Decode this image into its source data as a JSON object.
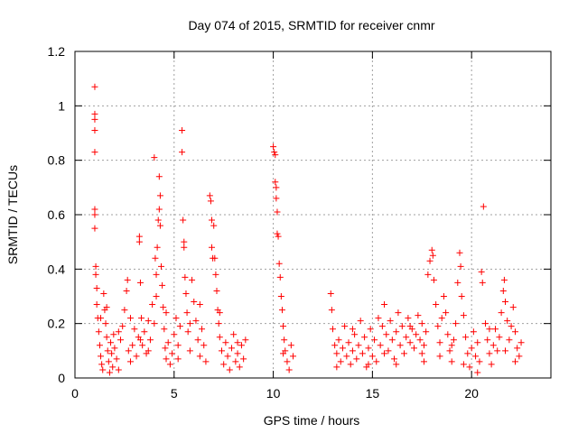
{
  "chart_data": {
    "type": "scatter",
    "title": "Day 074 of 2015, SRMTID for receiver cnmr",
    "xlabel": "GPS time / hours",
    "ylabel": "SRMTID / TECUs",
    "xlim": [
      0,
      24
    ],
    "ylim": [
      0,
      1.2
    ],
    "x_ticks": [
      0,
      5,
      10,
      15,
      20
    ],
    "y_ticks": [
      0,
      0.2,
      0.4,
      0.6,
      0.8,
      1,
      1.2
    ],
    "x_tick_labels": [
      "0",
      "5",
      "10",
      "15",
      "20"
    ],
    "y_tick_labels": [
      "0",
      "0.2",
      "0.4",
      "0.6",
      "0.8",
      "1",
      "1.2"
    ],
    "grid": true,
    "marker": "+",
    "color": "#ff0000",
    "series": [
      {
        "name": "SRMTID",
        "points": [
          [
            1.0,
            1.07
          ],
          [
            1.0,
            0.97
          ],
          [
            1.0,
            0.95
          ],
          [
            1.0,
            0.91
          ],
          [
            1.0,
            0.83
          ],
          [
            1.0,
            0.62
          ],
          [
            1.0,
            0.6
          ],
          [
            1.0,
            0.55
          ],
          [
            1.05,
            0.41
          ],
          [
            1.05,
            0.38
          ],
          [
            1.1,
            0.33
          ],
          [
            1.1,
            0.27
          ],
          [
            1.15,
            0.22
          ],
          [
            1.2,
            0.17
          ],
          [
            1.25,
            0.12
          ],
          [
            1.3,
            0.08
          ],
          [
            1.35,
            0.05
          ],
          [
            1.4,
            0.03
          ],
          [
            1.45,
            0.31
          ],
          [
            1.5,
            0.25
          ],
          [
            1.55,
            0.2
          ],
          [
            1.6,
            0.15
          ],
          [
            1.65,
            0.1
          ],
          [
            1.7,
            0.06
          ],
          [
            1.75,
            0.02
          ],
          [
            1.8,
            0.13
          ],
          [
            1.85,
            0.09
          ],
          [
            1.9,
            0.04
          ],
          [
            1.95,
            0.16
          ],
          [
            2.0,
            0.11
          ],
          [
            2.1,
            0.07
          ],
          [
            2.2,
            0.03
          ],
          [
            2.3,
            0.14
          ],
          [
            2.4,
            0.19
          ],
          [
            2.5,
            0.25
          ],
          [
            2.6,
            0.32
          ],
          [
            2.65,
            0.36
          ],
          [
            2.7,
            0.1
          ],
          [
            2.8,
            0.06
          ],
          [
            2.9,
            0.12
          ],
          [
            3.0,
            0.18
          ],
          [
            3.1,
            0.08
          ],
          [
            3.2,
            0.15
          ],
          [
            3.25,
            0.52
          ],
          [
            3.25,
            0.5
          ],
          [
            3.3,
            0.35
          ],
          [
            3.35,
            0.22
          ],
          [
            3.4,
            0.12
          ],
          [
            3.5,
            0.17
          ],
          [
            3.6,
            0.09
          ],
          [
            3.7,
            0.21
          ],
          [
            3.8,
            0.14
          ],
          [
            3.9,
            0.27
          ],
          [
            4.0,
            0.81
          ],
          [
            4.0,
            0.2
          ],
          [
            4.05,
            0.44
          ],
          [
            4.1,
            0.38
          ],
          [
            4.1,
            0.3
          ],
          [
            4.15,
            0.48
          ],
          [
            4.2,
            0.58
          ],
          [
            4.25,
            0.62
          ],
          [
            4.25,
            0.74
          ],
          [
            4.3,
            0.67
          ],
          [
            4.3,
            0.56
          ],
          [
            4.35,
            0.41
          ],
          [
            4.4,
            0.34
          ],
          [
            4.45,
            0.26
          ],
          [
            4.5,
            0.18
          ],
          [
            4.55,
            0.11
          ],
          [
            4.6,
            0.07
          ],
          [
            4.7,
            0.13
          ],
          [
            4.8,
            0.05
          ],
          [
            4.9,
            0.09
          ],
          [
            5.0,
            0.16
          ],
          [
            5.1,
            0.22
          ],
          [
            5.2,
            0.12
          ],
          [
            5.3,
            0.19
          ],
          [
            5.4,
            0.91
          ],
          [
            5.4,
            0.83
          ],
          [
            5.45,
            0.58
          ],
          [
            5.5,
            0.5
          ],
          [
            5.5,
            0.48
          ],
          [
            5.55,
            0.37
          ],
          [
            5.6,
            0.31
          ],
          [
            5.65,
            0.24
          ],
          [
            5.7,
            0.17
          ],
          [
            5.8,
            0.1
          ],
          [
            5.9,
            0.36
          ],
          [
            6.0,
            0.28
          ],
          [
            6.1,
            0.21
          ],
          [
            6.2,
            0.14
          ],
          [
            6.3,
            0.08
          ],
          [
            6.4,
            0.18
          ],
          [
            6.5,
            0.12
          ],
          [
            6.6,
            0.06
          ],
          [
            6.8,
            0.67
          ],
          [
            6.85,
            0.65
          ],
          [
            6.9,
            0.58
          ],
          [
            6.9,
            0.48
          ],
          [
            6.95,
            0.44
          ],
          [
            7.0,
            0.56
          ],
          [
            7.05,
            0.44
          ],
          [
            7.1,
            0.38
          ],
          [
            7.15,
            0.32
          ],
          [
            7.2,
            0.25
          ],
          [
            7.25,
            0.2
          ],
          [
            7.3,
            0.15
          ],
          [
            7.4,
            0.1
          ],
          [
            7.5,
            0.05
          ],
          [
            7.6,
            0.13
          ],
          [
            7.7,
            0.08
          ],
          [
            7.8,
            0.03
          ],
          [
            7.9,
            0.11
          ],
          [
            8.0,
            0.16
          ],
          [
            8.1,
            0.06
          ],
          [
            8.2,
            0.09
          ],
          [
            8.3,
            0.04
          ],
          [
            8.4,
            0.12
          ],
          [
            8.5,
            0.07
          ],
          [
            8.6,
            0.14
          ],
          [
            10.0,
            0.85
          ],
          [
            10.05,
            0.83
          ],
          [
            10.1,
            0.82
          ],
          [
            10.1,
            0.72
          ],
          [
            10.15,
            0.7
          ],
          [
            10.15,
            0.66
          ],
          [
            10.2,
            0.61
          ],
          [
            10.2,
            0.53
          ],
          [
            10.25,
            0.52
          ],
          [
            10.3,
            0.42
          ],
          [
            10.35,
            0.37
          ],
          [
            10.4,
            0.3
          ],
          [
            10.45,
            0.25
          ],
          [
            10.5,
            0.19
          ],
          [
            10.55,
            0.14
          ],
          [
            10.6,
            0.1
          ],
          [
            10.7,
            0.06
          ],
          [
            10.8,
            0.03
          ],
          [
            10.9,
            0.12
          ],
          [
            11.0,
            0.08
          ],
          [
            12.9,
            0.31
          ],
          [
            12.95,
            0.25
          ],
          [
            13.0,
            0.18
          ],
          [
            13.1,
            0.12
          ],
          [
            13.2,
            0.09
          ],
          [
            13.3,
            0.14
          ],
          [
            13.4,
            0.06
          ],
          [
            13.5,
            0.11
          ],
          [
            13.6,
            0.19
          ],
          [
            13.7,
            0.08
          ],
          [
            13.8,
            0.13
          ],
          [
            13.9,
            0.05
          ],
          [
            14.0,
            0.1
          ],
          [
            14.1,
            0.16
          ],
          [
            14.2,
            0.07
          ],
          [
            14.3,
            0.12
          ],
          [
            14.4,
            0.21
          ],
          [
            14.5,
            0.09
          ],
          [
            14.6,
            0.15
          ],
          [
            14.7,
            0.04
          ],
          [
            14.8,
            0.11
          ],
          [
            14.9,
            0.18
          ],
          [
            15.0,
            0.08
          ],
          [
            15.1,
            0.14
          ],
          [
            15.2,
            0.06
          ],
          [
            15.3,
            0.22
          ],
          [
            15.4,
            0.12
          ],
          [
            15.5,
            0.19
          ],
          [
            15.6,
            0.27
          ],
          [
            15.7,
            0.16
          ],
          [
            15.8,
            0.1
          ],
          [
            15.9,
            0.21
          ],
          [
            16.0,
            0.14
          ],
          [
            16.1,
            0.07
          ],
          [
            16.2,
            0.17
          ],
          [
            16.3,
            0.24
          ],
          [
            16.4,
            0.12
          ],
          [
            16.5,
            0.19
          ],
          [
            16.6,
            0.09
          ],
          [
            16.7,
            0.15
          ],
          [
            16.8,
            0.22
          ],
          [
            16.9,
            0.13
          ],
          [
            17.0,
            0.18
          ],
          [
            17.1,
            0.11
          ],
          [
            17.2,
            0.16
          ],
          [
            17.3,
            0.23
          ],
          [
            17.4,
            0.14
          ],
          [
            17.5,
            0.2
          ],
          [
            17.6,
            0.12
          ],
          [
            17.7,
            0.17
          ],
          [
            17.8,
            0.38
          ],
          [
            17.9,
            0.43
          ],
          [
            18.0,
            0.47
          ],
          [
            18.05,
            0.45
          ],
          [
            18.1,
            0.36
          ],
          [
            18.2,
            0.27
          ],
          [
            18.3,
            0.19
          ],
          [
            18.4,
            0.13
          ],
          [
            18.5,
            0.22
          ],
          [
            18.6,
            0.3
          ],
          [
            18.7,
            0.24
          ],
          [
            18.8,
            0.16
          ],
          [
            18.9,
            0.1
          ],
          [
            19.0,
            0.06
          ],
          [
            19.1,
            0.14
          ],
          [
            19.2,
            0.2
          ],
          [
            19.3,
            0.35
          ],
          [
            19.4,
            0.46
          ],
          [
            19.45,
            0.41
          ],
          [
            19.5,
            0.3
          ],
          [
            19.6,
            0.23
          ],
          [
            19.7,
            0.15
          ],
          [
            19.8,
            0.09
          ],
          [
            19.9,
            0.04
          ],
          [
            20.0,
            0.11
          ],
          [
            20.1,
            0.17
          ],
          [
            20.2,
            0.08
          ],
          [
            20.3,
            0.13
          ],
          [
            20.4,
            0.06
          ],
          [
            20.5,
            0.39
          ],
          [
            20.55,
            0.35
          ],
          [
            20.6,
            0.63
          ],
          [
            20.7,
            0.2
          ],
          [
            20.8,
            0.14
          ],
          [
            20.9,
            0.09
          ],
          [
            21.0,
            0.05
          ],
          [
            21.1,
            0.12
          ],
          [
            21.2,
            0.18
          ],
          [
            21.3,
            0.1
          ],
          [
            21.4,
            0.15
          ],
          [
            21.5,
            0.24
          ],
          [
            21.6,
            0.32
          ],
          [
            21.65,
            0.36
          ],
          [
            21.7,
            0.28
          ],
          [
            21.8,
            0.21
          ],
          [
            21.9,
            0.14
          ],
          [
            22.0,
            0.19
          ],
          [
            22.1,
            0.26
          ],
          [
            22.2,
            0.17
          ],
          [
            22.3,
            0.11
          ],
          [
            22.4,
            0.08
          ],
          [
            22.5,
            0.13
          ],
          [
            1.3,
            0.22
          ],
          [
            1.6,
            0.26
          ],
          [
            2.2,
            0.17
          ],
          [
            2.8,
            0.22
          ],
          [
            3.3,
            0.14
          ],
          [
            3.7,
            0.1
          ],
          [
            4.6,
            0.24
          ],
          [
            5.2,
            0.07
          ],
          [
            5.8,
            0.2
          ],
          [
            6.3,
            0.27
          ],
          [
            7.3,
            0.24
          ],
          [
            8.2,
            0.13
          ],
          [
            10.5,
            0.09
          ],
          [
            13.2,
            0.04
          ],
          [
            14.0,
            0.18
          ],
          [
            14.8,
            0.05
          ],
          [
            15.6,
            0.09
          ],
          [
            16.2,
            0.05
          ],
          [
            16.9,
            0.19
          ],
          [
            17.5,
            0.09
          ],
          [
            18.4,
            0.08
          ],
          [
            19.0,
            0.12
          ],
          [
            19.6,
            0.05
          ],
          [
            20.3,
            0.02
          ],
          [
            20.9,
            0.18
          ],
          [
            21.7,
            0.1
          ],
          [
            22.2,
            0.06
          ],
          [
            17.6,
            0.06
          ]
        ]
      }
    ]
  }
}
